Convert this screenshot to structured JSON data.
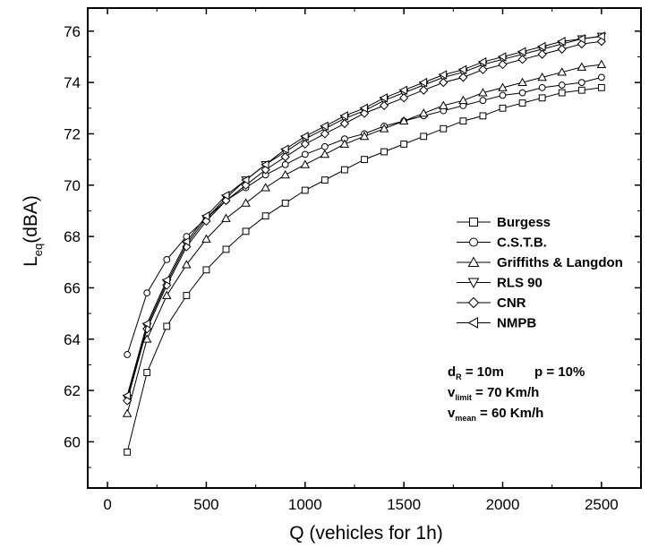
{
  "chart_data": {
    "type": "line",
    "xlabel": "Q (vehicles for 1h)",
    "ylabel": {
      "main": "L",
      "sub": "eq",
      "rest": "(dBA)"
    },
    "xlim": [
      -100,
      2700
    ],
    "ylim": [
      58.2,
      76.9
    ],
    "x_ticks": [
      0,
      500,
      1000,
      1500,
      2000,
      2500
    ],
    "y_ticks": [
      60,
      62,
      64,
      66,
      68,
      70,
      72,
      74,
      76
    ],
    "x": [
      100,
      200,
      300,
      400,
      500,
      600,
      700,
      800,
      900,
      1000,
      1100,
      1200,
      1300,
      1400,
      1500,
      1600,
      1700,
      1800,
      1900,
      2000,
      2100,
      2200,
      2300,
      2400,
      2500
    ],
    "series": [
      {
        "name": "Burgess",
        "marker": "square",
        "values": [
          59.6,
          62.7,
          64.5,
          65.7,
          66.7,
          67.5,
          68.2,
          68.8,
          69.3,
          69.8,
          70.2,
          70.6,
          71.0,
          71.3,
          71.6,
          71.9,
          72.2,
          72.5,
          72.7,
          73.0,
          73.2,
          73.4,
          73.6,
          73.7,
          73.8
        ]
      },
      {
        "name": "C.S.T.B.",
        "marker": "circle",
        "values": [
          63.4,
          65.8,
          67.1,
          68.0,
          68.7,
          69.4,
          69.9,
          70.4,
          70.8,
          71.2,
          71.5,
          71.8,
          72.0,
          72.3,
          72.5,
          72.7,
          72.9,
          73.1,
          73.3,
          73.5,
          73.6,
          73.8,
          73.9,
          74.0,
          74.2
        ]
      },
      {
        "name": "Griffiths & Langdon",
        "marker": "triangle-up",
        "values": [
          61.1,
          64.0,
          65.7,
          66.9,
          67.9,
          68.7,
          69.3,
          69.9,
          70.4,
          70.8,
          71.2,
          71.6,
          71.9,
          72.2,
          72.5,
          72.8,
          73.1,
          73.3,
          73.6,
          73.8,
          74.0,
          74.2,
          74.4,
          74.6,
          74.7
        ]
      },
      {
        "name": "RLS 90",
        "marker": "triangle-down",
        "values": [
          61.7,
          64.5,
          66.2,
          67.7,
          68.7,
          69.5,
          70.2,
          70.8,
          71.3,
          71.8,
          72.2,
          72.6,
          72.9,
          73.3,
          73.6,
          73.9,
          74.2,
          74.4,
          74.7,
          74.9,
          75.1,
          75.3,
          75.5,
          75.7,
          75.8
        ]
      },
      {
        "name": "CNR",
        "marker": "diamond",
        "values": [
          61.6,
          64.4,
          66.1,
          67.6,
          68.6,
          69.4,
          70.0,
          70.6,
          71.1,
          71.6,
          72.0,
          72.4,
          72.8,
          73.1,
          73.4,
          73.7,
          74.0,
          74.2,
          74.5,
          74.7,
          74.9,
          75.1,
          75.3,
          75.5,
          75.6
        ]
      },
      {
        "name": "NMPB",
        "marker": "triangle-left",
        "values": [
          61.8,
          64.6,
          66.3,
          67.8,
          68.8,
          69.6,
          70.2,
          70.8,
          71.4,
          71.9,
          72.3,
          72.7,
          73.0,
          73.4,
          73.7,
          74.0,
          74.3,
          74.5,
          74.8,
          75.0,
          75.2,
          75.4,
          75.6,
          75.7,
          75.8
        ]
      }
    ],
    "annotation": {
      "line1": {
        "a_main": "d",
        "a_sub": "R",
        "a_rest": " = 10m",
        "b": "p = 10%"
      },
      "line2": {
        "main": "v",
        "sub": "limit",
        "rest": " = 70 Km/h"
      },
      "line3": {
        "main": "v",
        "sub": "mean",
        "rest": " = 60 Km/h"
      }
    },
    "legend_position": "right",
    "grid": false
  }
}
